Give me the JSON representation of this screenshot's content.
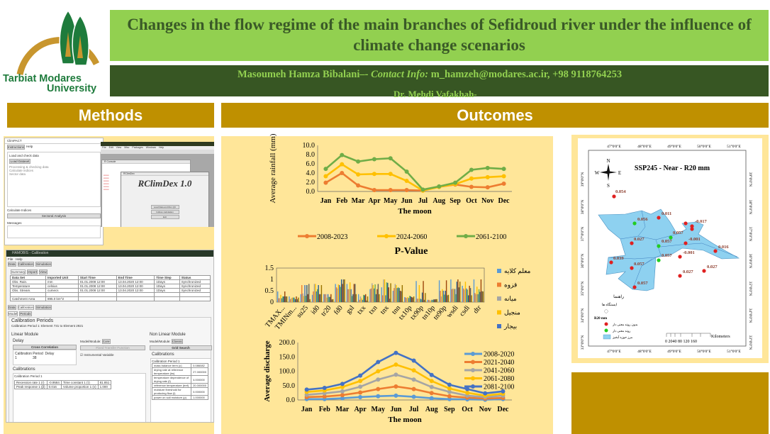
{
  "logo": {
    "text_line1": "Tarbiat Modares",
    "text_line2": "University",
    "colors": {
      "arch": "#C8962E",
      "trees": "#1E7B3C",
      "text": "#1E7B3C"
    }
  },
  "header": {
    "title": "Changes in the flow regime of the main branches of Sefidroud river under the influence of climate change scenarios",
    "author1": "Masoumeh Hamza Bibalani",
    "separator": "–-",
    "contact_label": "Contact Info:",
    "contact": "m_hamzeh@modares.ac.ir, +98 9118764253",
    "author2": "Dr. Mehdi Vafakhah-"
  },
  "sections": {
    "methods": "Methods",
    "outcomes": "Outcomes"
  },
  "colors": {
    "title_bg": "#92D050",
    "author_bg": "#375623",
    "section_bg": "#BF9000",
    "panel_bg": "#FFE699"
  },
  "methods": {
    "climpact": {
      "title": "ClimPACT",
      "tabs": [
        "Instructions",
        "Help"
      ],
      "load_label": "Load and check data",
      "button": "Load Dataset",
      "options": [
        "Processing & checking data",
        "Calculate indices",
        "Sector data"
      ],
      "compute": "Calculate Indices",
      "sector": "Sectoral Analysis",
      "messages": "Messages"
    },
    "rclimdex": {
      "menu": [
        "File",
        "Edit",
        "View",
        "Misc",
        "Packages",
        "Windows",
        "Help"
      ],
      "console": "R Console",
      "dialog_title": "RClimDex",
      "heading": "RClimDex 1.0",
      "buttons": [
        "Load Data and Run QC",
        "Indices calculation",
        "Exit"
      ]
    },
    "hydro": {
      "title": "HAMOBIS - Calibration",
      "menu": [
        "File",
        "Help"
      ],
      "tabs": [
        "Data",
        "Calibration",
        "Simulation"
      ],
      "subtabs": [
        "Summary",
        "Import",
        "View"
      ],
      "table_headers": [
        "Data Set",
        "Imported Unit",
        "Start Time",
        "End Time",
        "Time Step",
        "Status"
      ],
      "table_rows": [
        [
          "Obs. Rain.",
          "mm",
          "01.01.2008 12:00",
          "13.04.2020 12:00",
          "1Days",
          "Synchronized"
        ],
        [
          "Temperature",
          "celsius",
          "01.01.2008 12:00",
          "13.04.2020 12:00",
          "1Days",
          "Synchronized"
        ],
        [
          "Obs. Stream.",
          "cumecs",
          "01.01.2008 12:00",
          "13.04.2020 12:00",
          "1Days",
          "Synchronized"
        ]
      ],
      "catchment_label": "Catchment Area",
      "catchment_value": "895.0 km^2",
      "cal_tabs": [
        "Model",
        "Periods"
      ],
      "cal_periods": "Calibration Periods",
      "cal_period_desc": "Calibration Period 1: Element 731 to Element 2921",
      "linear": "Linear Module",
      "nonlinear": "Non Linear Module",
      "delay": "Delay",
      "model_module": "Model/Module:",
      "lin_select": "Core",
      "nl_select": "Classic",
      "cross_corr": "Cross Correlation",
      "fixed_tf": "Fixed Transfer Function",
      "grid_search": "Grid Search",
      "instrumental": "Instrumental Variable",
      "delay_headers": [
        "Calibration Period",
        "Delay"
      ],
      "delay_row": [
        "1",
        "38"
      ],
      "calibrations": "Calibrations",
      "cal_period1": "Calibration Period 1",
      "lin_params": [
        [
          "Recession rate 1 (r)",
          "-0.9584",
          "Time constant 1 (τ)",
          "81.851"
        ],
        [
          "Peak response 1 (β)",
          "0.016",
          "Volume proportion 1 (v)",
          "1.000"
        ]
      ],
      "nl_params": [
        [
          "mass balance term (c)",
          "0.086082"
        ],
        [
          "drying rate at reference temperature (tw)",
          "27.000000"
        ],
        [
          "temperature dependence of drying rate (f)",
          "4.000000"
        ],
        [
          "reference temperature (tref)",
          "20.000000"
        ],
        [
          "moisture threshold for producing flow (l)",
          "0.000000"
        ],
        [
          "power on soil moisture (p)",
          "1.000000"
        ]
      ]
    }
  },
  "chart_data": [
    {
      "type": "line",
      "xlabel": "The moon",
      "ylabel": "Average rainfall (mm)",
      "ylim": [
        0,
        10
      ],
      "yticks": [
        "0.0",
        "2.0",
        "4.0",
        "6.0",
        "8.0",
        "10.0"
      ],
      "legend": "bottom",
      "categories": [
        "Jan",
        "Feb",
        "Mar",
        "Apr",
        "May",
        "Jun",
        "Jul",
        "Aug",
        "Sep",
        "Oct",
        "Nov",
        "Dec"
      ],
      "series": [
        {
          "name": "2008-2023",
          "color": "#ED7D31",
          "values": [
            1.9,
            4.0,
            1.3,
            0.3,
            0.3,
            0.3,
            0.2,
            1.0,
            1.5,
            1.0,
            0.9,
            1.7
          ]
        },
        {
          "name": "2024-2060",
          "color": "#FFC000",
          "values": [
            3.3,
            5.9,
            3.7,
            3.8,
            3.8,
            2.3,
            0.2,
            1.0,
            1.6,
            2.8,
            3.1,
            3.3
          ]
        },
        {
          "name": "2061-2100",
          "color": "#70AD47",
          "values": [
            4.9,
            7.9,
            6.5,
            7.0,
            7.2,
            4.3,
            0.4,
            1.1,
            1.9,
            4.7,
            5.1,
            4.9
          ]
        }
      ]
    },
    {
      "type": "bar",
      "title": "P-Value",
      "ylim": [
        0,
        1.5
      ],
      "yticks": [
        "0",
        "0.5",
        "1",
        "1.5"
      ],
      "legend": "right",
      "categories": [
        "TMAX...",
        "TMINm...",
        "su25",
        "id0",
        "tr20",
        "fd0",
        "gsl",
        "txx",
        "txn",
        "tnx",
        "tnn",
        "tx10p",
        "tx90p",
        "tn10p",
        "tn90p",
        "wsdi",
        "csdi",
        "dtr"
      ],
      "series": [
        {
          "name": "معلم کلایه",
          "color": "#5B9BD5",
          "values": [
            0.47,
            0.25,
            0.35,
            0.32,
            0.35,
            0.8,
            0.8,
            0.35,
            0.57,
            0.65,
            0.5,
            0.22,
            0.93,
            0.1,
            0.96,
            1.0,
            0.72,
            1.0
          ]
        },
        {
          "name": "قزوه",
          "color": "#ED7D31",
          "values": [
            0.17,
            0.13,
            0.75,
            0.47,
            0.35,
            0.65,
            0.57,
            0.1,
            0.6,
            0.3,
            0.62,
            0.2,
            0.15,
            0.1,
            0.5,
            0.57,
            0.6,
            0.4
          ]
        },
        {
          "name": "میانه",
          "color": "#A5A5A5",
          "values": [
            0.17,
            0.17,
            0.38,
            0.8,
            0.35,
            0.6,
            0.57,
            0.25,
            0.83,
            1.0,
            0.8,
            0.18,
            0.15,
            0.08,
            0.25,
            0.6,
            0.55,
            0.35
          ]
        },
        {
          "name": "منجیل",
          "color": "#FFC000",
          "values": [
            0.32,
            0.2,
            0.27,
            0.8,
            0.2,
            0.78,
            0.87,
            0.17,
            0.75,
            1.0,
            0.75,
            0.22,
            0.75,
            0.07,
            0.57,
            0.58,
            0.9,
            0.68
          ]
        },
        {
          "name": "بیجار",
          "color": "#4472C4",
          "values": [
            0.17,
            0.2,
            0.75,
            0.47,
            0.35,
            0.75,
            0.57,
            0.1,
            0.6,
            0.3,
            0.62,
            0.18,
            0.15,
            0.1,
            0.5,
            0.58,
            0.6,
            0.35
          ]
        },
        {
          "color": "#70AD47",
          "values": [
            0.25,
            0.2,
            0.28,
            0.57,
            0.23,
            0.67,
            0.27,
            0.32,
            0.78,
            0.87,
            0.65,
            0.28,
            0.12,
            0.1,
            0.33,
            0.35,
            0.55,
            0.57
          ]
        },
        {
          "color": "#255E91",
          "values": [
            0.25,
            0.13,
            0.75,
            0.75,
            0.23,
            1.0,
            0.35,
            0.3,
            0.35,
            0.85,
            0.62,
            0.25,
            0.42,
            0.12,
            0.5,
            0.9,
            0.3,
            0.45
          ]
        },
        {
          "color": "#9E480E",
          "values": [
            0.47,
            0.25,
            0.35,
            0.35,
            0.35,
            0.8,
            0.8,
            0.35,
            0.57,
            0.65,
            0.5,
            0.22,
            0.93,
            0.12,
            0.96,
            1.0,
            0.72,
            1.0
          ]
        },
        {
          "color": "#636363",
          "values": [
            0.25,
            0.13,
            0.8,
            0.35,
            0.12,
            1.0,
            0.8,
            0.07,
            0.8,
            0.15,
            0.48,
            0.2,
            0.1,
            0.13,
            0.3,
            0.65,
            0.62,
            0.48
          ]
        },
        {
          "color": "#997300",
          "values": [
            0.25,
            0.2,
            0.13,
            0.75,
            0.13,
            1.0,
            0.35,
            0.25,
            0.35,
            0.83,
            0.75,
            0.25,
            0.4,
            0.13,
            0.32,
            0.9,
            0.3,
            0.47
          ]
        }
      ]
    },
    {
      "type": "line",
      "xlabel": "The moon",
      "ylabel": "Average discharge",
      "ylim": [
        0,
        200
      ],
      "yticks": [
        "0.0",
        "50.0",
        "100.0",
        "150.0",
        "200.0"
      ],
      "legend": "top-right",
      "categories": [
        "Jan",
        "Feb",
        "Mar",
        "Apr",
        "May",
        "Jun",
        "Jul",
        "Aug",
        "Sep",
        "Oct",
        "Nov",
        "Dec"
      ],
      "series": [
        {
          "name": "2008-2020",
          "color": "#5B9BD5",
          "values": [
            3,
            3,
            6,
            10,
            13,
            15,
            11,
            6,
            3,
            2,
            1,
            3
          ]
        },
        {
          "name": "2021-2040",
          "color": "#ED7D31",
          "values": [
            10,
            12,
            17,
            26,
            38,
            47,
            38,
            24,
            13,
            8,
            5,
            7
          ]
        },
        {
          "name": "2041-2060",
          "color": "#A5A5A5",
          "values": [
            18,
            23,
            30,
            46,
            71,
            88,
            71,
            45,
            28,
            15,
            10,
            15
          ]
        },
        {
          "name": "2061-2080",
          "color": "#FFC000",
          "values": [
            28,
            33,
            45,
            66,
            100,
            123,
            103,
            66,
            40,
            25,
            15,
            22
          ]
        },
        {
          "name": "2081-2100",
          "color": "#4472C4",
          "values": [
            36,
            42,
            56,
            85,
            132,
            164,
            137,
            87,
            53,
            38,
            23,
            30
          ]
        }
      ]
    }
  ],
  "map": {
    "title": "SSP245 - Near - R20 mm",
    "compass": {
      "n": "N",
      "s": "S",
      "e": "E",
      "w": "W"
    },
    "lon_labels": [
      "47°0'0\"E",
      "48°0'0\"E",
      "49°0'0\"E",
      "50°0'0\"E",
      "51°0'0\"E"
    ],
    "lat_labels": [
      "39°0'0\"N",
      "38°0'0\"N",
      "37°0'0\"N",
      "36°0'0\"N",
      "35°0'0\"N",
      "34°0'0\"N",
      "33°0'0\"N"
    ],
    "stations": [
      {
        "label": "0.054",
        "sig": false
      },
      {
        "label": "0.011",
        "sig": false
      },
      {
        "label": "0.056",
        "sig": true
      },
      {
        "label": "-0.017",
        "sig": false
      },
      {
        "label": "0.057",
        "sig": true
      },
      {
        "label": "-0.001",
        "sig": false
      },
      {
        "label": "0.057",
        "sig": true
      },
      {
        "label": "0.016",
        "sig": false
      },
      {
        "label": "0.027",
        "sig": false
      },
      {
        "label": "-0.001",
        "sig": false
      },
      {
        "label": "0.057",
        "sig": true
      },
      {
        "label": "0.039",
        "sig": false
      },
      {
        "label": "0.057",
        "sig": false
      },
      {
        "label": "0.027",
        "sig": false
      },
      {
        "label": "0.027",
        "sig": false
      },
      {
        "label": "0.057",
        "sig": false
      }
    ],
    "legend": {
      "title": "راهنما",
      "stations": "ایستگاه ها",
      "index": "R20 mm",
      "nonsig": "بدون روند معنی دار",
      "sig": "روند معنی دار",
      "basin": "مرز حوزه آبخیز"
    },
    "scale": {
      "ticks": "0 2040 80 120 160",
      "unit": "Kilometers"
    },
    "colors": {
      "basin": "#8ED1F0",
      "nonsig": "#E02020",
      "sig": "#22CC22"
    }
  }
}
